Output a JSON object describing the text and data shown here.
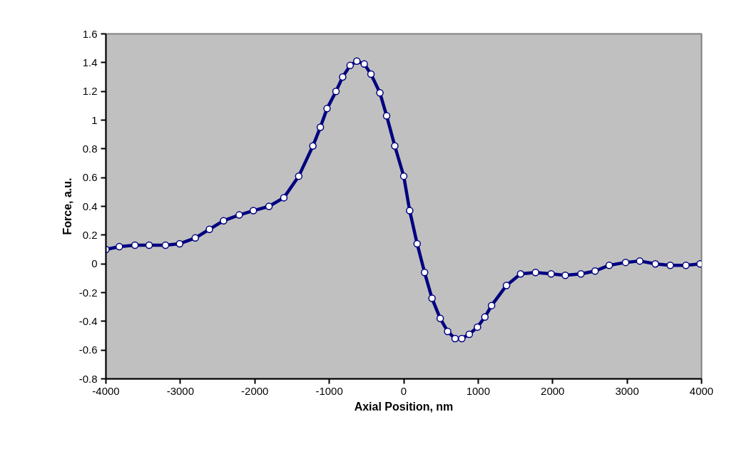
{
  "chart_data": {
    "type": "line",
    "xlabel": "Axial Position, nm",
    "ylabel": "Force, a.u.",
    "xlim": [
      -4000,
      4000
    ],
    "xticks": [
      -4000,
      -3000,
      -2000,
      -1000,
      0,
      1000,
      2000,
      3000,
      4000
    ],
    "ylim": [
      -0.8,
      1.6
    ],
    "yticks": [
      -0.8,
      -0.6,
      -0.4,
      -0.2,
      0,
      0.2,
      0.4,
      0.6,
      0.8,
      1,
      1.2,
      1.4,
      1.6
    ],
    "grid": false,
    "marker": "circle",
    "line_style": "solid",
    "x": [
      -4000,
      -3820,
      -3610,
      -3420,
      -3200,
      -3010,
      -2800,
      -2610,
      -2420,
      -2210,
      -2020,
      -1810,
      -1610,
      -1410,
      -1220,
      -1120,
      -1030,
      -910,
      -820,
      -720,
      -630,
      -530,
      -440,
      -320,
      -230,
      -120,
      0,
      80,
      180,
      280,
      380,
      490,
      590,
      690,
      780,
      880,
      990,
      1090,
      1180,
      1380,
      1570,
      1770,
      1980,
      2170,
      2380,
      2570,
      2760,
      2980,
      3170,
      3380,
      3580,
      3790,
      3980
    ],
    "series": [
      {
        "color": "#000080",
        "values": [
          0.1,
          0.12,
          0.13,
          0.13,
          0.13,
          0.14,
          0.18,
          0.24,
          0.3,
          0.34,
          0.37,
          0.4,
          0.46,
          0.61,
          0.82,
          0.95,
          1.08,
          1.2,
          1.3,
          1.38,
          1.41,
          1.39,
          1.32,
          1.19,
          1.03,
          0.82,
          0.61,
          0.37,
          0.14,
          -0.06,
          -0.24,
          -0.38,
          -0.47,
          -0.52,
          -0.52,
          -0.49,
          -0.44,
          -0.37,
          -0.29,
          -0.15,
          -0.07,
          -0.06,
          -0.07,
          -0.08,
          -0.07,
          -0.05,
          -0.01,
          0.01,
          0.02,
          0.0,
          -0.01,
          -0.01,
          0.0
        ]
      }
    ]
  }
}
